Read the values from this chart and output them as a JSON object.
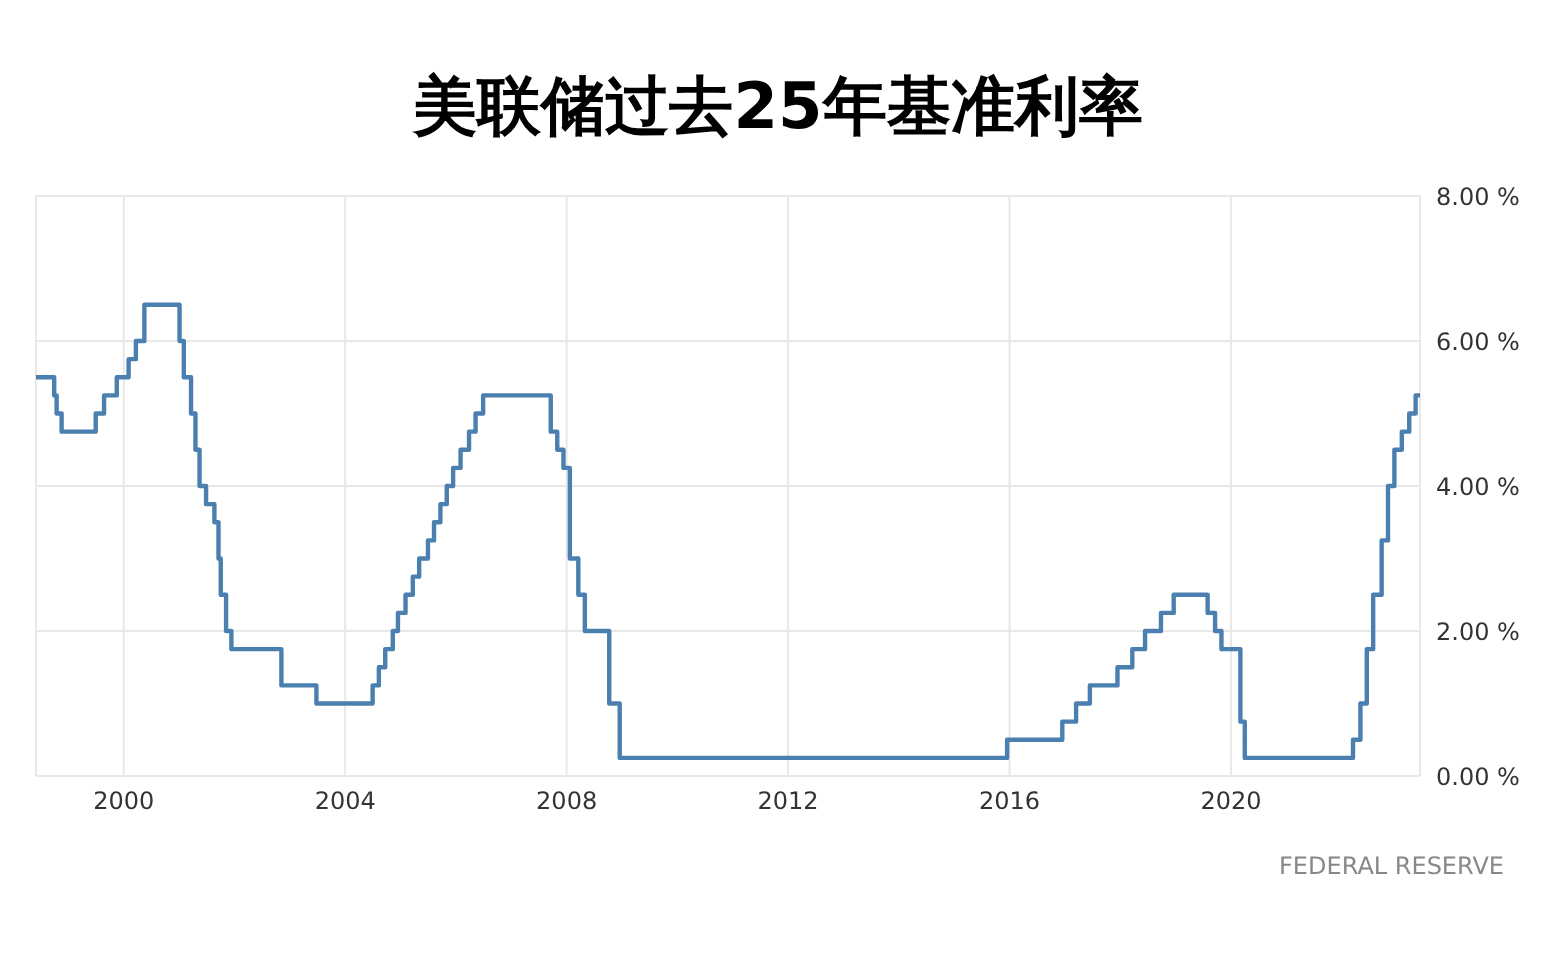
{
  "chart_data": {
    "type": "step",
    "title": "美联储过去25年基准利率",
    "annotations": [
      "FEDERAL RESERVE"
    ],
    "x": [
      "1998-06-01",
      "1998-09-29",
      "1998-10-15",
      "1998-11-17",
      "1999-06-30",
      "1999-08-24",
      "1999-11-16",
      "2000-02-02",
      "2000-03-21",
      "2000-05-16",
      "2001-01-03",
      "2001-01-31",
      "2001-03-20",
      "2001-04-18",
      "2001-05-15",
      "2001-06-27",
      "2001-08-21",
      "2001-09-17",
      "2001-10-02",
      "2001-11-06",
      "2001-12-11",
      "2002-11-06",
      "2003-06-25",
      "2004-06-30",
      "2004-08-10",
      "2004-09-21",
      "2004-11-10",
      "2004-12-14",
      "2005-02-02",
      "2005-03-22",
      "2005-05-03",
      "2005-06-30",
      "2005-08-09",
      "2005-09-20",
      "2005-11-01",
      "2005-12-13",
      "2006-01-31",
      "2006-03-28",
      "2006-05-10",
      "2006-06-29",
      "2007-09-18",
      "2007-10-31",
      "2007-12-11",
      "2008-01-22",
      "2008-01-30",
      "2008-03-18",
      "2008-04-30",
      "2008-10-08",
      "2008-10-29",
      "2008-12-16",
      "2015-12-16",
      "2016-12-14",
      "2017-03-15",
      "2017-06-14",
      "2017-12-13",
      "2018-03-21",
      "2018-06-13",
      "2018-09-26",
      "2018-12-19",
      "2019-07-31",
      "2019-09-18",
      "2019-10-30",
      "2020-03-03",
      "2020-04-01",
      "2022-03-16",
      "2022-05-04",
      "2022-06-15",
      "2022-07-27",
      "2022-09-21",
      "2022-11-02",
      "2022-12-14",
      "2023-02-01",
      "2023-03-22",
      "2023-05-03",
      "2023-06-01"
    ],
    "series": [
      {
        "color": "#4a7fb0",
        "values": [
          5.5,
          5.25,
          5.0,
          4.75,
          5.0,
          5.25,
          5.5,
          5.75,
          6.0,
          6.5,
          6.0,
          5.5,
          5.0,
          4.5,
          4.0,
          3.75,
          3.5,
          3.0,
          2.5,
          2.0,
          1.75,
          1.25,
          1.0,
          1.25,
          1.5,
          1.75,
          2.0,
          2.25,
          2.5,
          2.75,
          3.0,
          3.25,
          3.5,
          3.75,
          4.0,
          4.25,
          4.5,
          4.75,
          5.0,
          5.25,
          4.75,
          4.5,
          4.25,
          3.0,
          3.0,
          2.5,
          2.0,
          1.0,
          1.0,
          0.25,
          0.5,
          0.75,
          1.0,
          1.25,
          1.5,
          1.75,
          2.0,
          2.25,
          2.5,
          2.25,
          2.0,
          1.75,
          0.75,
          0.25,
          0.5,
          1.0,
          1.75,
          2.5,
          3.25,
          4.0,
          4.5,
          4.75,
          5.0,
          5.25,
          5.25
        ]
      }
    ],
    "xlim": [
      "1998-06-01",
      "2023-06-01"
    ],
    "xticks": [
      "2000",
      "2004",
      "2008",
      "2012",
      "2016",
      "2020"
    ],
    "ylim": [
      0,
      8
    ],
    "yticks": [
      {
        "value": 0,
        "label": "0.00 %"
      },
      {
        "value": 2,
        "label": "2.00 %"
      },
      {
        "value": 4,
        "label": "4.00 %"
      },
      {
        "value": 6,
        "label": "6.00 %"
      },
      {
        "value": 8,
        "label": "8.00 %"
      }
    ],
    "grid": true,
    "legend": false,
    "line_style": "solid"
  }
}
